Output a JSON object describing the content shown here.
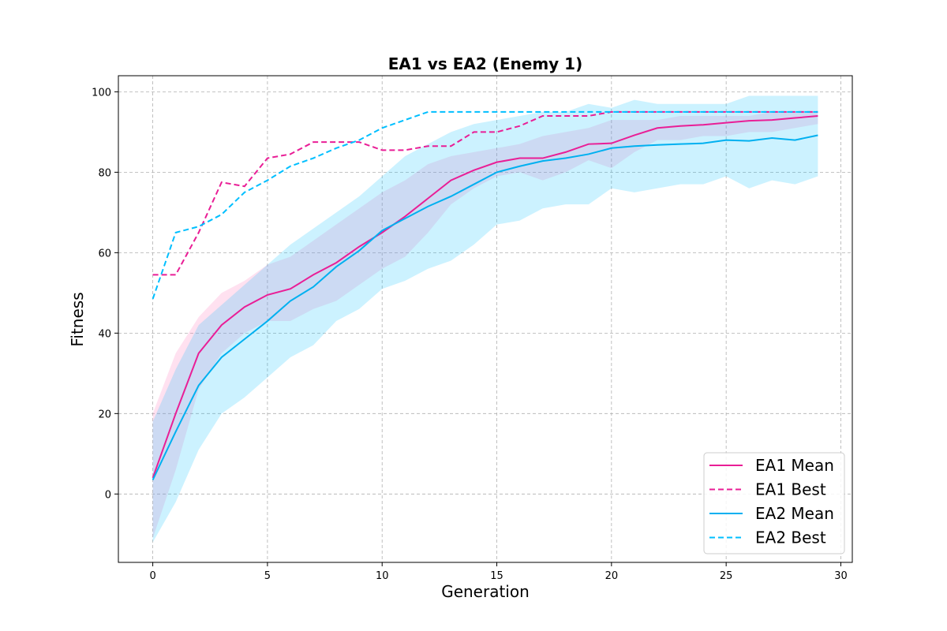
{
  "chart_data": {
    "type": "line",
    "title": "EA1 vs EA2 (Enemy 1)",
    "xlabel": "Generation",
    "ylabel": "Fitness",
    "xlim": [
      -1.5,
      30.5
    ],
    "ylim": [
      -17,
      104
    ],
    "xticks": [
      0,
      5,
      10,
      15,
      20,
      25,
      30
    ],
    "yticks": [
      0,
      20,
      40,
      60,
      80,
      100
    ],
    "grid": true,
    "legend_position": "lower-right",
    "x": [
      0,
      1,
      2,
      3,
      4,
      5,
      6,
      7,
      8,
      9,
      10,
      11,
      12,
      13,
      14,
      15,
      16,
      17,
      18,
      19,
      20,
      21,
      22,
      23,
      24,
      25,
      26,
      27,
      28,
      29
    ],
    "bands": [
      {
        "series": "EA1 Mean",
        "color": "#ff69b4",
        "lower": [
          -11,
          6,
          26,
          35,
          40,
          43,
          43,
          46,
          48,
          52,
          56,
          59,
          65,
          72,
          76,
          79,
          80,
          78,
          80,
          83,
          81,
          85,
          88,
          88,
          89,
          89,
          90,
          90,
          91,
          92
        ],
        "upper": [
          20,
          35,
          44,
          50,
          53,
          57,
          59,
          63,
          67,
          71,
          75,
          78,
          82,
          84,
          85,
          86,
          87,
          89,
          90,
          91,
          93,
          93,
          93,
          94,
          94,
          94,
          94,
          95,
          95,
          95
        ]
      },
      {
        "series": "EA2 Mean",
        "color": "#00bfff",
        "lower": [
          -12,
          -2,
          11,
          20,
          24,
          29,
          34,
          37,
          43,
          46,
          51,
          53,
          56,
          58,
          62,
          67,
          68,
          71,
          72,
          72,
          76,
          75,
          76,
          77,
          77,
          79,
          76,
          78,
          77,
          79
        ],
        "upper": [
          18,
          31,
          42,
          47,
          52,
          57,
          62,
          66,
          70,
          74,
          79,
          84,
          87,
          90,
          92,
          93,
          94,
          95,
          95,
          97,
          96,
          98,
          97,
          97,
          97,
          97,
          99,
          99,
          99,
          99
        ]
      }
    ],
    "series": [
      {
        "name": "EA1 Mean",
        "color": "#e91e96",
        "dash": "solid",
        "values": [
          4,
          20,
          35,
          42,
          46.5,
          49.5,
          51,
          54.5,
          57.5,
          61.5,
          65,
          69,
          73.5,
          78,
          80.5,
          82.5,
          83.5,
          83.5,
          85,
          87,
          87.2,
          89.2,
          91,
          91.5,
          91.8,
          92.3,
          92.8,
          93,
          93.5,
          94
        ]
      },
      {
        "name": "EA1 Best",
        "color": "#e91e96",
        "dash": "dashed",
        "values": [
          54.5,
          54.5,
          65,
          77.5,
          76.5,
          83.5,
          84.5,
          87.5,
          87.5,
          87.5,
          85.5,
          85.5,
          86.5,
          86.5,
          90,
          90,
          91.5,
          94,
          94,
          94,
          95,
          95,
          95,
          95,
          95,
          95,
          95,
          95,
          95,
          95
        ]
      },
      {
        "name": "EA2 Mean",
        "color": "#00b0f0",
        "dash": "solid",
        "values": [
          3.5,
          15.5,
          27,
          34,
          38.5,
          43,
          48,
          51.5,
          56.5,
          60.5,
          65.5,
          68.5,
          71.5,
          74,
          77,
          80,
          81.5,
          82.8,
          83.5,
          84.5,
          86,
          86.5,
          86.8,
          87,
          87.2,
          88,
          87.8,
          88.5,
          88,
          89.2
        ]
      },
      {
        "name": "EA2 Best",
        "color": "#00bfff",
        "dash": "dashed",
        "values": [
          48.5,
          65,
          66.5,
          69.5,
          75,
          78,
          81.5,
          83.5,
          86,
          88,
          91,
          93,
          95,
          95,
          95,
          95,
          95,
          95,
          95,
          95,
          95,
          95,
          95,
          95,
          95,
          95,
          95,
          95,
          95,
          95
        ]
      }
    ],
    "legend": [
      {
        "label": "EA1 Mean",
        "color": "#e91e96",
        "dash": "solid"
      },
      {
        "label": "EA1 Best",
        "color": "#e91e96",
        "dash": "dashed"
      },
      {
        "label": "EA2 Mean",
        "color": "#00b0f0",
        "dash": "solid"
      },
      {
        "label": "EA2 Best",
        "color": "#00bfff",
        "dash": "dashed"
      }
    ]
  }
}
